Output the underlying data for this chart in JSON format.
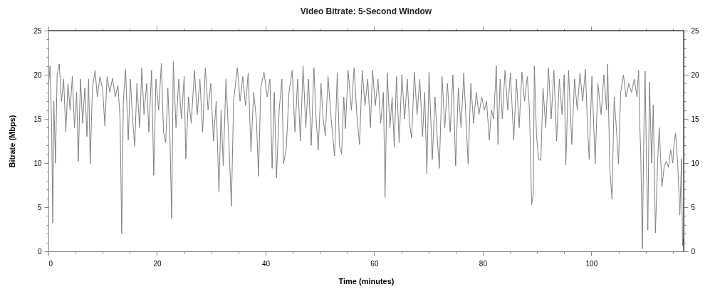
{
  "chart_data": {
    "type": "line",
    "title": "Video Bitrate: 5-Second Window",
    "xlabel": "Time (minutes)",
    "ylabel": "Bitrate (Mbps)",
    "xlim": [
      0,
      117
    ],
    "xticks": [
      0,
      {
        "value": 5,
        "label": null
      },
      {
        "value": 10,
        "label": null
      },
      {
        "value": 15,
        "label": null
      },
      20,
      {
        "value": 25,
        "label": null
      },
      {
        "value": 30,
        "label": null
      },
      {
        "value": 35,
        "label": null
      },
      40,
      {
        "value": 45,
        "label": null
      },
      {
        "value": 50,
        "label": null
      },
      {
        "value": 55,
        "label": null
      },
      60,
      {
        "value": 65,
        "label": null
      },
      {
        "value": 70,
        "label": null
      },
      {
        "value": 75,
        "label": null
      },
      80,
      {
        "value": 85,
        "label": null
      },
      {
        "value": 90,
        "label": null
      },
      {
        "value": 95,
        "label": null
      },
      100,
      {
        "value": 105,
        "label": null
      },
      {
        "value": 110,
        "label": null
      },
      {
        "value": 115,
        "label": null
      }
    ],
    "ylim": [
      0,
      25
    ],
    "yticks": [
      0,
      {
        "value": 1,
        "label": null
      },
      {
        "value": 2,
        "label": null
      },
      {
        "value": 3,
        "label": null
      },
      {
        "value": 4,
        "label": null
      },
      5,
      {
        "value": 6,
        "label": null
      },
      {
        "value": 7,
        "label": null
      },
      {
        "value": 8,
        "label": null
      },
      {
        "value": 9,
        "label": null
      },
      10,
      {
        "value": 11,
        "label": null
      },
      {
        "value": 12,
        "label": null
      },
      {
        "value": 13,
        "label": null
      },
      {
        "value": 14,
        "label": null
      },
      15,
      {
        "value": 16,
        "label": null
      },
      {
        "value": 17,
        "label": null
      },
      {
        "value": 18,
        "label": null
      },
      {
        "value": 19,
        "label": null
      },
      20,
      {
        "value": 21,
        "label": null
      },
      {
        "value": 22,
        "label": null
      },
      {
        "value": 23,
        "label": null
      },
      {
        "value": 24,
        "label": null
      },
      25
    ],
    "y2lim": [
      0,
      25
    ],
    "y2ticks": [
      0,
      {
        "value": 1,
        "label": null
      },
      {
        "value": 2,
        "label": null
      },
      {
        "value": 3,
        "label": null
      },
      {
        "value": 4,
        "label": null
      },
      5,
      {
        "value": 6,
        "label": null
      },
      {
        "value": 7,
        "label": null
      },
      {
        "value": 8,
        "label": null
      },
      {
        "value": 9,
        "label": null
      },
      10,
      {
        "value": 11,
        "label": null
      },
      {
        "value": 12,
        "label": null
      },
      {
        "value": 13,
        "label": null
      },
      {
        "value": 14,
        "label": null
      },
      15,
      {
        "value": 16,
        "label": null
      },
      {
        "value": 17,
        "label": null
      },
      {
        "value": 18,
        "label": null
      },
      {
        "value": 19,
        "label": null
      },
      20,
      {
        "value": 21,
        "label": null
      },
      {
        "value": 22,
        "label": null
      },
      {
        "value": 23,
        "label": null
      },
      {
        "value": 24,
        "label": null
      },
      25
    ],
    "x": [
      0.0,
      0.3,
      0.6,
      0.8,
      1.0,
      1.3,
      1.6,
      2.0,
      2.4,
      2.8,
      3.2,
      3.6,
      4.0,
      4.4,
      4.8,
      5.2,
      5.5,
      5.9,
      6.3,
      6.7,
      7.1,
      7.4,
      7.7,
      8.1,
      8.6,
      9.0,
      9.5,
      10.0,
      10.4,
      10.8,
      11.3,
      11.8,
      12.3,
      12.8,
      13.2,
      13.5,
      13.8,
      14.2,
      14.7,
      15.1,
      15.5,
      15.9,
      16.3,
      16.8,
      17.2,
      17.6,
      18.1,
      18.5,
      19.0,
      19.4,
      19.8,
      20.3,
      20.8,
      21.2,
      21.6,
      22.0,
      22.4,
      22.7,
      23.0,
      23.5,
      24.0,
      24.5,
      25.0,
      25.3,
      25.8,
      26.3,
      26.9,
      27.4,
      27.9,
      28.4,
      28.9,
      29.4,
      29.9,
      30.4,
      30.9,
      31.4,
      31.8,
      32.2,
      32.7,
      33.2,
      33.7,
      34.1,
      34.8,
      35.3,
      35.8,
      36.3,
      36.8,
      37.3,
      37.8,
      38.3,
      38.7,
      39.1,
      39.7,
      40.3,
      40.8,
      41.2,
      41.6,
      42.0,
      42.5,
      43.0,
      43.3,
      43.8,
      44.3,
      44.9,
      45.4,
      45.9,
      46.4,
      46.9,
      47.4,
      47.9,
      48.4,
      48.9,
      49.3,
      49.7,
      50.2,
      50.6,
      51.0,
      51.5,
      52.0,
      52.7,
      53.2,
      53.6,
      54.0,
      54.4,
      54.7,
      55.2,
      55.8,
      56.3,
      56.8,
      57.3,
      57.8,
      58.3,
      58.8,
      59.3,
      59.7,
      60.2,
      60.7,
      61.2,
      61.7,
      62.0,
      62.4,
      62.9,
      63.3,
      63.7,
      64.1,
      64.6,
      65.1,
      65.6,
      66.1,
      66.5,
      66.9,
      67.4,
      67.9,
      68.4,
      68.9,
      69.3,
      69.7,
      70.1,
      70.7,
      71.2,
      71.6,
      72.0,
      72.5,
      73.0,
      73.5,
      74.0,
      74.5,
      75.0,
      75.5,
      76.0,
      76.5,
      76.9,
      77.3,
      77.8,
      78.3,
      78.8,
      79.3,
      79.8,
      80.3,
      80.7,
      81.2,
      81.6,
      82.0,
      82.5,
      82.8,
      83.2,
      83.6,
      84.1,
      84.6,
      85.1,
      85.7,
      86.2,
      86.7,
      87.2,
      87.7,
      88.2,
      88.6,
      89.0,
      89.3,
      89.5,
      89.9,
      90.3,
      90.7,
      91.1,
      91.6,
      92.1,
      92.6,
      93.1,
      93.6,
      94.1,
      94.6,
      95.0,
      95.3,
      95.8,
      96.4,
      96.9,
      97.4,
      97.9,
      98.4,
      98.9,
      99.3,
      99.6,
      100.1,
      100.7,
      101.2,
      101.8,
      102.3,
      102.8,
      103.0,
      103.4,
      103.8,
      104.2,
      104.6,
      105.0,
      105.4,
      105.9,
      106.4,
      106.9,
      107.4,
      107.9,
      108.4,
      108.7,
      108.9,
      109.1,
      109.4,
      109.7,
      109.9,
      110.1,
      110.4,
      110.7,
      111.1,
      111.4,
      111.8,
      112.2,
      112.5,
      113.0,
      113.4,
      113.8,
      114.2,
      114.6,
      115.0,
      115.2,
      115.5,
      115.9,
      116.3,
      116.6,
      116.8,
      117.0
    ],
    "series": [
      {
        "color": "#808080",
        "values": [
          18.5,
          21,
          14,
          3.2,
          17,
          10,
          20,
          21.2,
          17,
          19.5,
          13.5,
          19,
          16,
          19.8,
          14,
          18,
          10.2,
          19.5,
          14.5,
          18.5,
          13,
          19.5,
          9.9,
          18.5,
          20.5,
          17.5,
          19.8,
          18.2,
          14.2,
          19.8,
          18,
          19.6,
          17.5,
          18.8,
          15,
          2.0,
          17,
          20.6,
          12.6,
          19.5,
          15,
          11.9,
          19,
          14,
          20.8,
          15.5,
          19,
          13.5,
          20.5,
          8.6,
          19.5,
          16,
          21.3,
          13.5,
          12.3,
          18.5,
          12.5,
          3.7,
          21.5,
          14,
          19.5,
          15,
          19.8,
          10.5,
          17.5,
          14.5,
          20.5,
          15.5,
          19.5,
          13.5,
          20.8,
          16,
          19,
          12.5,
          17,
          6.7,
          16,
          9.7,
          19.5,
          13,
          5.1,
          17,
          20.8,
          17,
          19.8,
          16.5,
          20.2,
          11.3,
          18,
          15,
          8.5,
          18.5,
          20.3,
          17.5,
          19.5,
          9.4,
          18,
          8.3,
          16,
          19.5,
          9.9,
          11.5,
          18,
          20.5,
          13.5,
          19.5,
          12.5,
          21,
          14,
          19.5,
          12,
          20.8,
          15,
          11.5,
          19,
          15,
          13.1,
          19.8,
          15.5,
          10.8,
          20.2,
          12,
          11,
          17.5,
          13.9,
          20.5,
          16,
          20.8,
          15.5,
          12.1,
          20.5,
          16.5,
          19.5,
          14,
          20.5,
          16.5,
          19.5,
          14.5,
          18,
          6.1,
          20.2,
          14,
          17.5,
          11.8,
          19.8,
          12.3,
          20,
          15,
          19.5,
          14.5,
          12.8,
          20.3,
          15.5,
          19.5,
          13,
          18,
          8.8,
          20.3,
          10.4,
          17.5,
          13,
          9.4,
          19.8,
          14,
          19,
          13.5,
          20,
          9.7,
          18.5,
          14,
          20.2,
          15,
          9.9,
          19,
          14.5,
          18,
          15.5,
          17.5,
          16,
          17,
          12.6,
          16,
          15,
          21,
          12.1,
          19.5,
          15,
          20.5,
          16,
          20.2,
          12.6,
          19.5,
          14,
          20.3,
          17,
          19.8,
          16,
          5.3,
          6.5,
          21,
          13,
          10.4,
          10.3,
          18.5,
          14,
          20.8,
          15,
          20.5,
          12.5,
          19.5,
          15.5,
          20,
          9.8,
          20.5,
          12.1,
          19.5,
          16,
          20.2,
          17,
          20.6,
          14,
          10.4,
          19.8,
          9.9,
          19,
          15.5,
          20,
          16,
          21.2,
          9.4,
          5.9,
          17.5,
          14,
          9.9,
          18,
          20,
          17.5,
          19,
          18,
          19.5,
          17.5,
          20.5,
          14.6,
          11,
          0.3,
          15,
          20.4,
          12,
          2.4,
          19.2,
          10,
          16.6,
          2.1,
          10,
          14,
          7.3,
          9.5,
          10.2,
          9.5,
          11.5,
          10,
          12,
          13.4,
          10,
          4.1,
          10.5,
          0.6,
          1.5
        ]
      }
    ]
  }
}
